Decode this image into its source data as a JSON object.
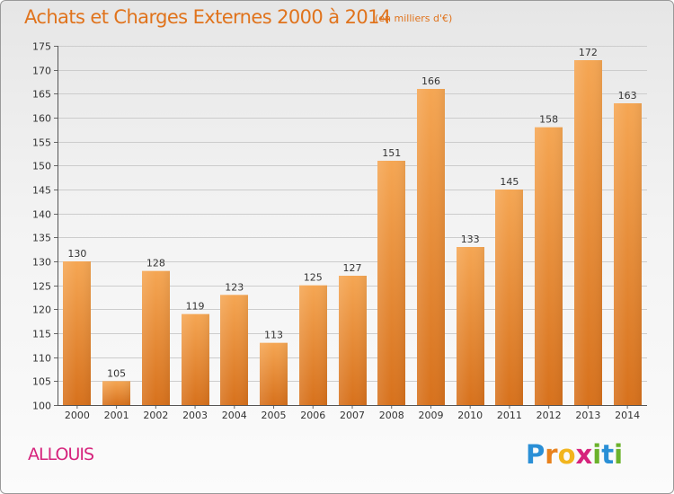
{
  "title": "Achats et Charges Externes 2000 à 2014",
  "subtitle": "(en milliers d'€)",
  "commune": "ALLOUIS",
  "logo": {
    "letters": [
      "P",
      "r",
      "o",
      "x",
      "i",
      "t",
      "i"
    ],
    "colors": [
      "#2a8fd6",
      "#e8811c",
      "#f2b51d",
      "#d6237c",
      "#6bb22b",
      "#2a8fd6",
      "#6bb22b"
    ]
  },
  "colors": {
    "bar_light": "#f5a653",
    "bar_dark": "#d7711c",
    "text": "#333333",
    "grid": "#cccccc"
  },
  "chart_data": {
    "type": "bar",
    "categories": [
      "2000",
      "2001",
      "2002",
      "2003",
      "2004",
      "2005",
      "2006",
      "2007",
      "2008",
      "2009",
      "2010",
      "2011",
      "2012",
      "2013",
      "2014"
    ],
    "values": [
      130,
      105,
      128,
      119,
      123,
      113,
      125,
      127,
      151,
      166,
      133,
      145,
      158,
      172,
      163
    ],
    "ylim": [
      100,
      175
    ],
    "yticks": [
      100,
      105,
      110,
      115,
      120,
      125,
      130,
      135,
      140,
      145,
      150,
      155,
      160,
      165,
      170,
      175
    ],
    "title": "Achats et Charges Externes 2000 à 2014",
    "xlabel": "",
    "ylabel": "",
    "grid": true,
    "data_labels": true
  }
}
